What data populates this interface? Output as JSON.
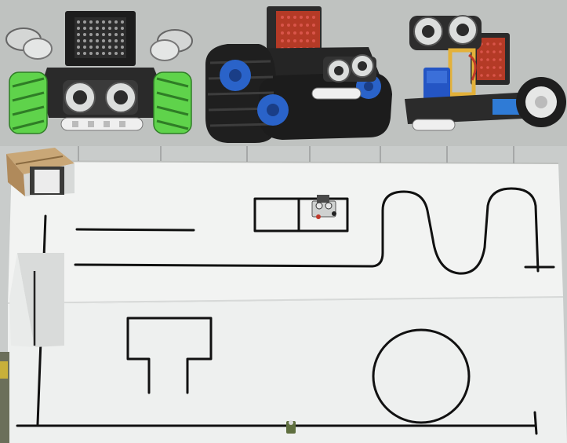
{
  "photo": {
    "colors": {
      "top_background": "#bfc2c0",
      "mat_white": "#f3f4f3",
      "line_black": "#111111",
      "wheel_green": "#5fd34b",
      "track_blue": "#2a63c9",
      "servo_blue": "#2455c4",
      "frame_yellow": "#e3b13a",
      "cardboard": "#b08a5b"
    },
    "objects": {
      "robot_mecanum": "mecanum-wheel-robot",
      "robot_tank": "tank-track-robot",
      "robot_wheeled": "two-wheel-robot-with-servo",
      "track_mat": "line-following-track-mat",
      "tunnel_top": "cardboard-tunnel",
      "tunnel_left": "white-tunnel-ramp",
      "small_robot_on_mat": "small-robot-on-track"
    }
  }
}
